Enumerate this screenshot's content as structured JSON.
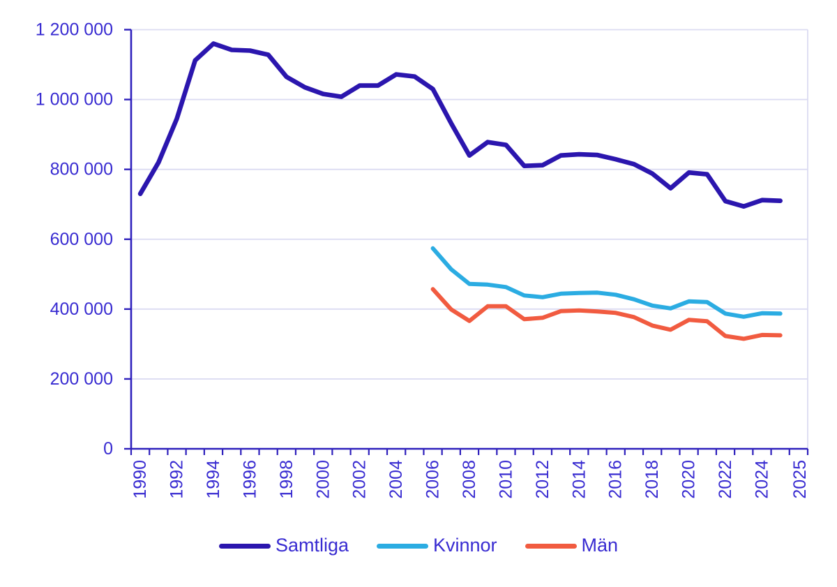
{
  "chart_data": {
    "type": "line",
    "title": "",
    "xlabel": "",
    "ylabel": "",
    "x": [
      1990,
      1991,
      1992,
      1993,
      1994,
      1995,
      1996,
      1997,
      1998,
      1999,
      2000,
      2001,
      2002,
      2003,
      2004,
      2005,
      2006,
      2007,
      2008,
      2009,
      2010,
      2011,
      2012,
      2013,
      2014,
      2015,
      2016,
      2017,
      2018,
      2019,
      2020,
      2021,
      2022,
      2023,
      2024,
      2025
    ],
    "series": [
      {
        "name": "Samtliga",
        "key": "samtliga",
        "color": "#2B16AE",
        "values": [
          730000,
          820000,
          945000,
          1112000,
          1160000,
          1142000,
          1140000,
          1128000,
          1065000,
          1035000,
          1016000,
          1008000,
          1040000,
          1040000,
          1072000,
          1066000,
          1030000,
          932000,
          840000,
          878000,
          870000,
          810000,
          812000,
          840000,
          843000,
          841000,
          829000,
          815000,
          788000,
          746000,
          791000,
          786000,
          709000,
          694000,
          712000,
          710000
        ]
      },
      {
        "name": "Kvinnor",
        "key": "kvinnor",
        "color": "#2BACE2",
        "values": [
          null,
          null,
          null,
          null,
          null,
          null,
          null,
          null,
          null,
          null,
          null,
          null,
          null,
          null,
          null,
          null,
          574000,
          514000,
          472000,
          470000,
          463000,
          439000,
          434000,
          444000,
          446000,
          447000,
          441000,
          428000,
          410000,
          402000,
          422000,
          420000,
          387000,
          378000,
          388000,
          387000
        ]
      },
      {
        "name": "Män",
        "key": "man",
        "color": "#F15B40",
        "values": [
          null,
          null,
          null,
          null,
          null,
          null,
          null,
          null,
          null,
          null,
          null,
          null,
          null,
          null,
          null,
          null,
          457000,
          399000,
          366000,
          408000,
          408000,
          371000,
          375000,
          394000,
          396000,
          393000,
          389000,
          377000,
          353000,
          341000,
          369000,
          365000,
          323000,
          315000,
          326000,
          325000
        ]
      }
    ],
    "ylim": [
      0,
      1200000
    ],
    "ytick_step": 200000,
    "ytick_labels": [
      "0",
      "200 000",
      "400 000",
      "600 000",
      "800 000",
      "1 000 000",
      "1 200 000"
    ],
    "xtick_labeled_years": [
      1990,
      1992,
      1994,
      1996,
      1998,
      2000,
      2002,
      2004,
      2006,
      2008,
      2010,
      2012,
      2014,
      2016,
      2018,
      2020,
      2022,
      2024,
      2025
    ],
    "grid": "horizontal",
    "legend_position": "bottom"
  },
  "colors": {
    "axis_line": "#2E20BC",
    "tick_label_text": "#382BD1",
    "gridline": "#DBDBF2",
    "background": "#FFFFFF"
  }
}
